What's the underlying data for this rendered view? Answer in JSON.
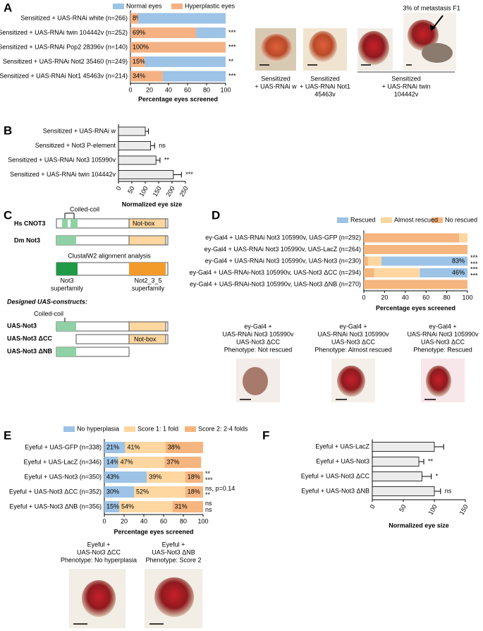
{
  "panel_letters": [
    "A",
    "B",
    "C",
    "D",
    "E",
    "F"
  ],
  "photo_note": "3% of metastasis F1",
  "photo_captions": {
    "A": [
      [
        "Sensitized",
        "+ UAS-RNAi w"
      ],
      [
        "Sensitized",
        "+ UAS-RNAi Not1",
        "45463v"
      ],
      [
        "Sensitized",
        "+ UAS-RNAi twin",
        "104442v"
      ]
    ],
    "D": [
      [
        "ey-Gal4 +",
        "UAS-RNAi Not3 105990v",
        "UAS-Not3 ΔCC",
        "Phenotype: Not rescued"
      ],
      [
        "ey-Gal4 +",
        "UAS-RNAi Not3 105990v",
        "UAS-Not3 ΔCC",
        "Phenotype: Almost rescued"
      ],
      [
        "ey-Gal4 +",
        "UAS-RNAi Not3 105990v",
        "UAS-Not3 ΔCC",
        "Phenotype: Rescued"
      ]
    ],
    "E": [
      [
        "Eyeful +",
        "UAS-Not3 ΔCC",
        "Phenotype: No hyperplasia"
      ],
      [
        "Eyeful +",
        "UAS-Not3 ΔNB",
        "Phenotype: Score 2"
      ]
    ]
  },
  "diagram": {
    "hs_cnot3": "Hs CNOT3",
    "dm_not3": "Dm Not3",
    "coiled_coil": "Coiled-coil",
    "not_box": "Not-box",
    "alignment": "ClustalW2 alignment analysis",
    "not3_superfamily": [
      "Not3",
      "superfamily"
    ],
    "not235_superfamily": [
      "Not2_3_5",
      "superfamily"
    ],
    "designed": "Designed UAS-constructs:",
    "coiled_coil_2": "Coiled-coil",
    "uas_not3": "UAS-Not3",
    "uas_not3_dcc": "UAS-Not3 ΔCC",
    "uas_not3_dnb": "UAS-Not3 ΔNB",
    "not_box_2": "Not-box"
  },
  "chart_data": [
    {
      "type": "bar",
      "orientation": "horizontal",
      "stacked": true,
      "categories": [
        "Sensitized + UAS-RNAi white (n=266)",
        "Sensitized + UAS-RNAi twin 104442v (n=252)",
        "Sensitized + UAS-RNAi Pop2 28396v (n=140)",
        "Sensitized + UAS-RNAi Not2 35460 (n=249)",
        "Sensitized + UAS-RNAi Not1 45463v (n=214)"
      ],
      "series": [
        {
          "name": "Hyperplastic eyes",
          "color": "#f4b183",
          "values": [
            8,
            69,
            100,
            15,
            34
          ],
          "value_labels": [
            "8%",
            "69%",
            "100%",
            "15%",
            "34%"
          ]
        },
        {
          "name": "Normal eyes",
          "color": "#9dc3e6",
          "values": [
            92,
            31,
            0,
            85,
            66
          ]
        }
      ],
      "annotations": [
        null,
        [
          "***"
        ],
        [
          "***"
        ],
        [
          "**"
        ],
        [
          "***"
        ]
      ],
      "annotation_colors": [
        "#000000"
      ],
      "xlabel": "Percentage eyes screened",
      "xlim": [
        0,
        100
      ],
      "xticks": [
        0,
        20,
        40,
        60,
        80,
        100
      ]
    },
    {
      "type": "bar",
      "orientation": "horizontal",
      "categories": [
        "Sensitized + UAS-RNAi w",
        "Sensitized + Not3 P-element",
        "Sensitized + UAS-RNAi Not3 105990v",
        "Sensitized + UAS-RNAi twin 104442v"
      ],
      "values": [
        100,
        120,
        140,
        205
      ],
      "errors": [
        12,
        15,
        15,
        30
      ],
      "color": "#ececec",
      "annotations": [
        null,
        [
          "ns"
        ],
        [
          "**"
        ],
        [
          "***"
        ]
      ],
      "annotation_colors": [
        "#000000"
      ],
      "xlabel": "Normalized eye size",
      "xlim": [
        0,
        250
      ],
      "xticks": [
        0,
        50,
        100,
        150,
        200,
        250
      ]
    },
    {
      "type": "bar",
      "orientation": "horizontal",
      "stacked": true,
      "categories": [
        "ey-Gal4 + UAS-RNAi Not3 105990v, UAS-GFP (n=292)",
        "ey-Gal4 + UAS-RNAi Not3 105990v, UAS-LacZ (n=264)",
        "ey-Gal4 + UAS-RNAi Not3 105990v, UAS-Not3 (n=230)",
        "ey-Gal4 + UAS-RNAi-Not3 105990v, UAS-Not3 ΔCC (n=294)",
        "ey-Gal4 + UAS-RNAi-Not3 105990v, UAS-Not3 ΔNB (n=270)"
      ],
      "category_colors": [
        "#2e9a3e",
        "#000000",
        "#000000",
        "#000000",
        "#000000"
      ],
      "series": [
        {
          "name": "No rescued",
          "color": "#f5b57f",
          "values": [
            92,
            100,
            4,
            10,
            100
          ]
        },
        {
          "name": "Almost rescued",
          "color": "#fdd6a0",
          "values": [
            8,
            0,
            13,
            44,
            0
          ]
        },
        {
          "name": "Rescued",
          "color": "#9dc3e6",
          "values": [
            0,
            0,
            83,
            46,
            0
          ],
          "value_labels": [
            null,
            null,
            "83%",
            "46%",
            null
          ]
        }
      ],
      "annotations": [
        null,
        null,
        [
          "***",
          "***"
        ],
        [
          "***",
          "***"
        ],
        null
      ],
      "annotation_colors": [
        "#2e9a3e",
        "#000000"
      ],
      "xlabel": "Percentage eyes screened",
      "xlim": [
        0,
        100
      ],
      "xticks": [
        0,
        20,
        40,
        60,
        80,
        100
      ]
    },
    {
      "type": "bar",
      "orientation": "horizontal",
      "stacked": true,
      "categories": [
        "Eyeful + UAS-GFP (n=338)",
        "Eyeful + UAS-LacZ (n=346)",
        "Eyeful + UAS-Not3 (n=350)",
        "Eyeful + UAS-Not3 ΔCC (n=352)",
        "Eyeful + UAS-Not3 ΔNB (n=356)"
      ],
      "category_colors": [
        "#2e9a3e",
        "#000000",
        "#000000",
        "#000000",
        "#000000"
      ],
      "series": [
        {
          "name": "No hyperplasia",
          "color": "#9dc3e6",
          "values": [
            21,
            14,
            43,
            30,
            15
          ],
          "value_labels": [
            "21%",
            "14%",
            "43%",
            "30%",
            "15%"
          ]
        },
        {
          "name": "Score 1: 1 fold",
          "color": "#fdd6a0",
          "values": [
            41,
            47,
            39,
            52,
            54
          ],
          "value_labels": [
            "41%",
            "47%",
            "39%",
            "52%",
            "54%"
          ]
        },
        {
          "name": "Score 2: 2-4 folds",
          "color": "#f5b57f",
          "values": [
            38,
            37,
            18,
            18,
            31
          ],
          "value_labels": [
            "38%",
            "37%",
            "18%",
            "18%",
            "31%"
          ]
        }
      ],
      "annotations": [
        null,
        null,
        [
          "**",
          "***"
        ],
        [
          "ns, p=0.14",
          "**"
        ],
        [
          "ns",
          "ns"
        ]
      ],
      "annotation_colors": [
        "#2e9a3e",
        "#000000"
      ],
      "xlabel": "Percentage eyes screened",
      "xlim": [
        0,
        100
      ],
      "xticks": [
        0,
        20,
        40,
        60,
        80,
        100
      ]
    },
    {
      "type": "bar",
      "orientation": "horizontal",
      "categories": [
        "Eyeful + UAS-LacZ",
        "Eyeful + UAS-Not3",
        "Eyeful + UAS-Not3 ΔCC",
        "Eyeful + UAS-Not3 ΔNB"
      ],
      "values": [
        100,
        75,
        80,
        100
      ],
      "errors": [
        15,
        8,
        15,
        10
      ],
      "color": "#ececec",
      "annotations": [
        null,
        [
          "**"
        ],
        [
          "*"
        ],
        [
          "ns"
        ]
      ],
      "annotation_colors": [
        "#000000"
      ],
      "xlabel": "Normalized eye size",
      "xlim": [
        0,
        150
      ],
      "xticks": [
        0,
        50,
        100,
        150
      ]
    }
  ]
}
